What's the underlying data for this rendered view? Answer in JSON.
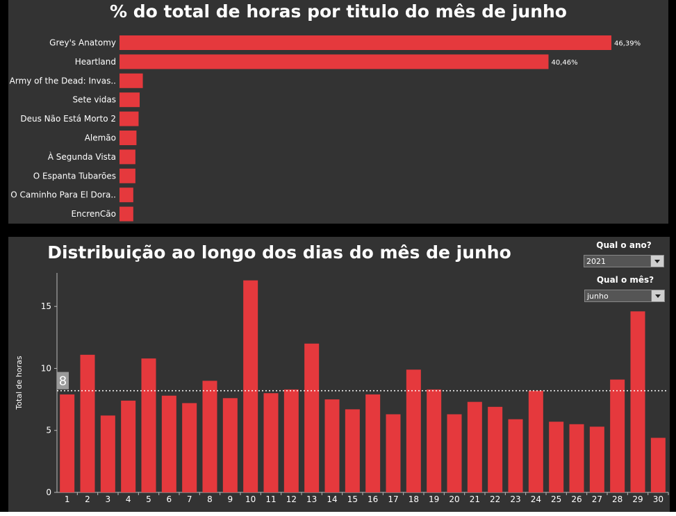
{
  "top_panel": {
    "title": "% do total de horas por titulo do mês de junho"
  },
  "bottom_panel": {
    "title": "Distribuição ao longo dos dias do mês de junho",
    "filters": [
      {
        "label": "Qual o ano?",
        "value": "2021"
      },
      {
        "label": "Qual o mês?",
        "value": "junho"
      }
    ]
  },
  "colors": {
    "bar": "#e5393d",
    "panel": "#333333",
    "reference_line": "#ffffff"
  },
  "chart_data": [
    {
      "type": "bar",
      "orientation": "horizontal",
      "title": "% do total de horas por titulo do mês de junho",
      "categories": [
        "Grey's Anatomy",
        "Heartland",
        "Army of the Dead: Invas..",
        "Sete vidas",
        "Deus Não Está Morto 2",
        "Alemão",
        "À Segunda Vista",
        "O Espanta Tubarões",
        "O Caminho Para El Dora..",
        "EncrenCão"
      ],
      "values": [
        46.39,
        40.46,
        2.2,
        1.9,
        1.8,
        1.6,
        1.5,
        1.5,
        1.3,
        1.3
      ],
      "data_labels": [
        "46,39%",
        "40,46%",
        "",
        "",
        "",
        "",
        "",
        "",
        "",
        ""
      ],
      "unit": "%",
      "xlim": [
        0,
        50
      ]
    },
    {
      "type": "bar",
      "title": "Distribuição ao longo dos dias do mês de junho",
      "xlabel": "",
      "ylabel": "Total de horas",
      "categories": [
        "1",
        "2",
        "3",
        "4",
        "5",
        "6",
        "7",
        "8",
        "9",
        "10",
        "11",
        "12",
        "13",
        "14",
        "15",
        "16",
        "17",
        "18",
        "19",
        "20",
        "21",
        "22",
        "23",
        "24",
        "25",
        "26",
        "27",
        "28",
        "29",
        "30"
      ],
      "values": [
        7.9,
        11.1,
        6.2,
        7.4,
        10.8,
        7.8,
        7.2,
        9.0,
        7.6,
        17.1,
        8.0,
        8.3,
        12.0,
        7.5,
        6.7,
        7.9,
        6.3,
        9.9,
        8.3,
        6.3,
        7.3,
        6.9,
        5.9,
        8.2,
        5.7,
        5.5,
        5.3,
        9.1,
        14.6,
        4.4
      ],
      "yticks": [
        0,
        5,
        10,
        15
      ],
      "ylim": [
        0,
        17.7
      ],
      "reference_line": {
        "value": 8.2,
        "label": "8"
      },
      "grid": false
    }
  ]
}
